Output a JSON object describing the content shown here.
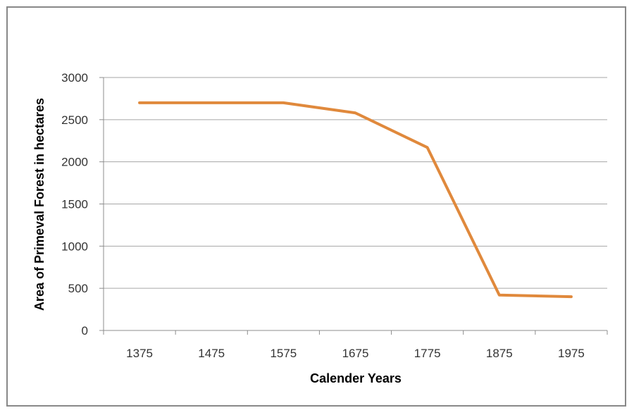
{
  "chart_data": {
    "type": "line",
    "xlabel": "Calender Years",
    "ylabel": "Area of Primeval Forest in hectares",
    "x": [
      1375,
      1475,
      1575,
      1675,
      1775,
      1875,
      1975
    ],
    "series": [
      {
        "values": [
          2700,
          2700,
          2700,
          2580,
          2170,
          420,
          400
        ]
      }
    ],
    "ylim": [
      0,
      3000
    ],
    "yticks": [
      0,
      500,
      1000,
      1500,
      2000,
      2500,
      3000
    ],
    "grid": true,
    "legend": "none",
    "line_color": "#E0893C"
  }
}
